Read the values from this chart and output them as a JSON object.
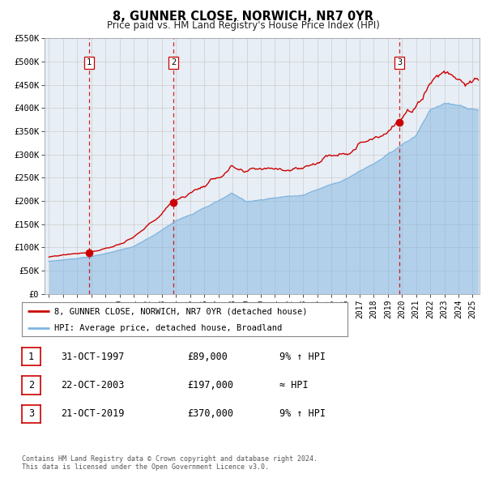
{
  "title": "8, GUNNER CLOSE, NORWICH, NR7 0YR",
  "subtitle": "Price paid vs. HM Land Registry's House Price Index (HPI)",
  "legend_line1": "8, GUNNER CLOSE, NORWICH, NR7 0YR (detached house)",
  "legend_line2": "HPI: Average price, detached house, Broadland",
  "sale_dates": [
    1997.83,
    2003.81,
    2019.81
  ],
  "sale_prices": [
    89000,
    197000,
    370000
  ],
  "sale_labels": [
    "1",
    "2",
    "3"
  ],
  "table_rows": [
    [
      "1",
      "31-OCT-1997",
      "£89,000",
      "9% ↑ HPI"
    ],
    [
      "2",
      "22-OCT-2003",
      "£197,000",
      "≈ HPI"
    ],
    [
      "3",
      "21-OCT-2019",
      "£370,000",
      "9% ↑ HPI"
    ]
  ],
  "footer_line1": "Contains HM Land Registry data © Crown copyright and database right 2024.",
  "footer_line2": "This data is licensed under the Open Government Licence v3.0.",
  "hpi_color": "#7eb4e0",
  "price_color": "#cc0000",
  "sale_marker_color": "#cc0000",
  "vline_color": "#cc0000",
  "grid_color": "#cccccc",
  "background_color": "#ffffff",
  "plot_bg_color": "#e8eef5",
  "ylim": [
    0,
    550000
  ],
  "xlim_start": 1994.7,
  "xlim_end": 2025.5,
  "ytick_values": [
    0,
    50000,
    100000,
    150000,
    200000,
    250000,
    300000,
    350000,
    400000,
    450000,
    500000,
    550000
  ],
  "ytick_labels": [
    "£0",
    "£50K",
    "£100K",
    "£150K",
    "£200K",
    "£250K",
    "£300K",
    "£350K",
    "£400K",
    "£450K",
    "£500K",
    "£550K"
  ],
  "xtick_years": [
    1995,
    1996,
    1997,
    1998,
    1999,
    2000,
    2001,
    2002,
    2003,
    2004,
    2005,
    2006,
    2007,
    2008,
    2009,
    2010,
    2011,
    2012,
    2013,
    2014,
    2015,
    2016,
    2017,
    2018,
    2019,
    2020,
    2021,
    2022,
    2023,
    2024,
    2025
  ]
}
